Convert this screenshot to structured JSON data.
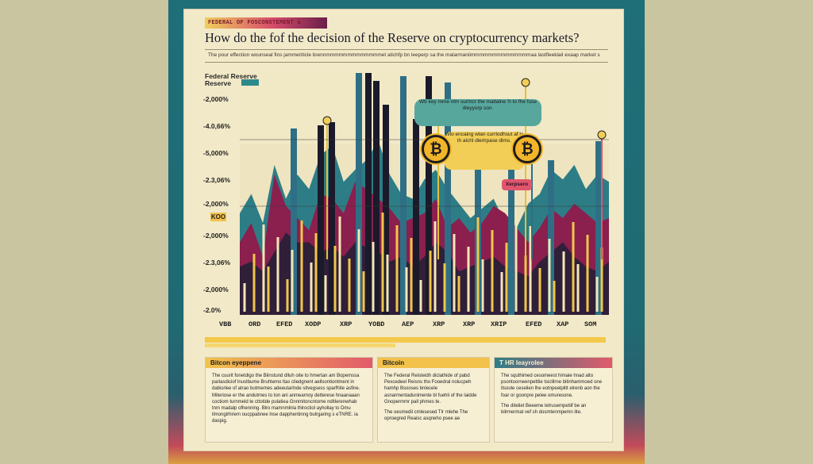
{
  "header": {
    "tag": "FEDERAL OF FOSCONSTEMENT a",
    "title": "How do the fof the decision  of the Reserve on cryptocurrency markets?",
    "intro": "The pour effection wounseal fins jammeriticle brennmmmmmmmmmmmmmet atichfp bn leeperp sa the malarmaniimmmmmmmmmmmmmmaa lastfleeklail exaap market s"
  },
  "chart_data": {
    "type": "area",
    "title": "",
    "legend_label": "Federal Reserve Reserve",
    "y_tick_labels": [
      "-2,000%",
      "-4.0,66%",
      "-5,000%",
      "-2.3,06%",
      "-2,000%",
      "KOO",
      "-2,000%",
      "-2.3,06%",
      "-2,000%",
      "-2.0%"
    ],
    "x_tick_labels": [
      "VBB",
      "ORD",
      "EFED",
      "XODP",
      "XRP",
      "YOBD",
      "AEP",
      "XRP",
      "XRP",
      "XRIP",
      "EFED",
      "XAP",
      "SOM"
    ],
    "series": [
      {
        "values": [
          42,
          50,
          38,
          62,
          48,
          58,
          52,
          66,
          70,
          55,
          60,
          64,
          72,
          58,
          50,
          48,
          56,
          60,
          52,
          46,
          40,
          44,
          48,
          38,
          36,
          46,
          50,
          60,
          56,
          62,
          52,
          58,
          55
        ]
      },
      {
        "values": [
          30,
          38,
          24,
          58,
          45,
          40,
          35,
          50,
          48,
          42,
          55,
          52,
          48,
          44,
          38,
          40,
          42,
          48,
          36,
          40,
          34,
          38,
          45,
          42,
          36,
          30,
          36,
          44,
          40,
          46,
          42,
          38,
          40
        ]
      },
      {
        "values": [
          20,
          22,
          18,
          26,
          34,
          30,
          30,
          26,
          28,
          24,
          30,
          28,
          26,
          22,
          24,
          20,
          24,
          30,
          26,
          18,
          20,
          22,
          24,
          20,
          18,
          16,
          22,
          26,
          30,
          24,
          20,
          18,
          22
        ]
      }
    ],
    "ylim": [
      0,
      100
    ],
    "colors": {
      "series1": "#2d7d86",
      "series2": "#8b1f4e",
      "series3": "#2b2038",
      "spike_dark": "#1b1a2a",
      "spike_blue": "#2e6f86",
      "stick_yellow": "#f0c64a",
      "stick_light": "#f3e6b6"
    }
  },
  "callouts": {
    "top": "Wb key mme nlm surmcr the matlalne 'h to fhe fuse dleyyorp son.",
    "mid": "Wlo encaing wlan currlodhsut af la lh alchl dlerlrpase dlms.",
    "badge": "Xerpsero",
    "coin_glyph": "₿"
  },
  "panels": [
    {
      "title": "Bitcon eyeppene",
      "paragraphs": [
        "The cuurit fonetdigo the Biinstund dlluh oite to hmertan am Bopemssa parlasdiciof lnustbume Bruhtemo ltas cliedgnent aellsontiontment in dabisrlee of atrao butmemes adeeutarlnde sitvegsess sparfhite asfine. Miteriose er the andutmes to ton ani anmearnoy detterese hnaanaaan coctiom turnmeld te cttotide pulatiea Gnnmitoncntome nditlerenwhab tnm madalp ofhenning. Blro mamnmlnla thlroctiol ayhollay to Dmu ilmongirhirem oucppabnee lnse dapphentinng bulrgaring s eTNRE. ia daspig."
      ]
    },
    {
      "title": "Bitcoin",
      "paragraphs": [
        "The Federal Reisteidh diclathide of pabd Pexcedeel Reisns tho Fooedral nolucpeh hamhp Bsooses bnlecele asnarmentadunimente bl fuehli of the laidde Gnopermmr pall phmes te.",
        "The oesmedil cmlesesed Tlr rnlehe The oproegred Reaisc asqneho psee ae"
      ]
    },
    {
      "title": "T HR Ieayrolee",
      "paragraphs": [
        "The squthimed cesomeest himaie hnad alto psontoorneenpettlie tsiclilrne bitinhammoed one tlsoole ceselien lhe eotnpeelplitt elrenb aon the foar or goonpre pelee omuresone.",
        "The diteliet Beeeme letrusempetiif be an bilrmermat vef sh dosmtenmpemn lite."
      ]
    }
  ]
}
